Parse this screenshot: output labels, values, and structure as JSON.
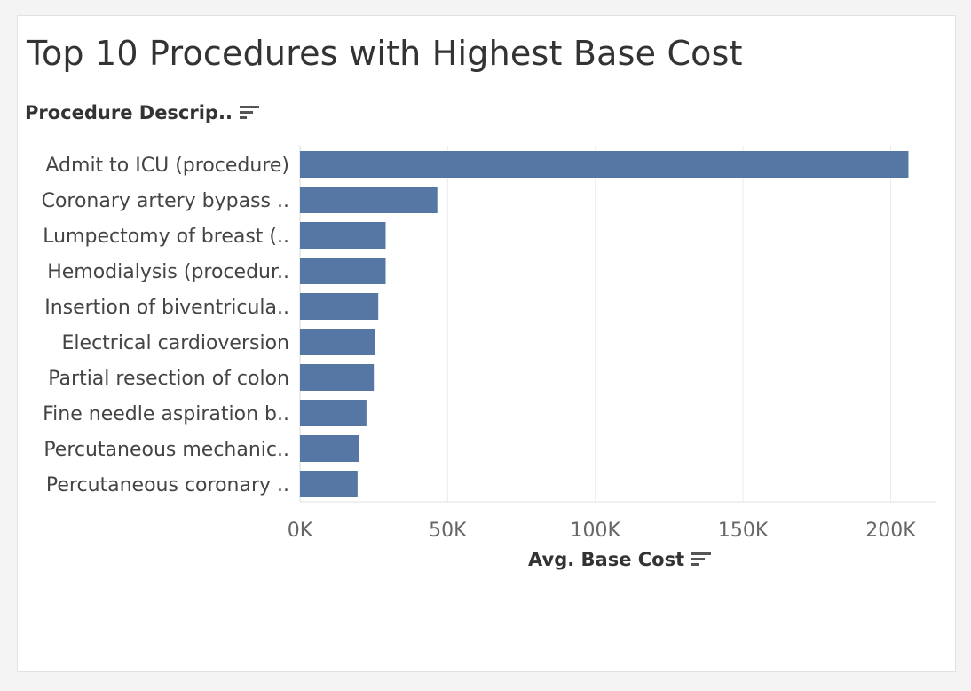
{
  "chart_data": {
    "type": "bar",
    "orientation": "horizontal",
    "title": "Top 10 Procedures with Highest Base Cost",
    "ylabel": "Procedure Descrip..",
    "xlabel": "Avg. Base Cost",
    "categories": [
      "Admit to ICU (procedure)",
      "Coronary artery bypass ..",
      "Lumpectomy of breast (..",
      "Hemodialysis (procedur..",
      "Insertion of biventricula..",
      "Electrical cardioversion",
      "Partial resection of colon",
      "Fine needle aspiration b..",
      "Percutaneous mechanic..",
      "Percutaneous coronary .."
    ],
    "values": [
      206000,
      46500,
      29000,
      29000,
      26500,
      25500,
      25000,
      22500,
      20000,
      19500
    ],
    "xlim": [
      0,
      215000
    ],
    "ticks": [
      0,
      50000,
      100000,
      150000,
      200000
    ],
    "tick_labels": [
      "0K",
      "50K",
      "100K",
      "150K",
      "200K"
    ],
    "grid": true,
    "bar_color": "#5677a4"
  }
}
